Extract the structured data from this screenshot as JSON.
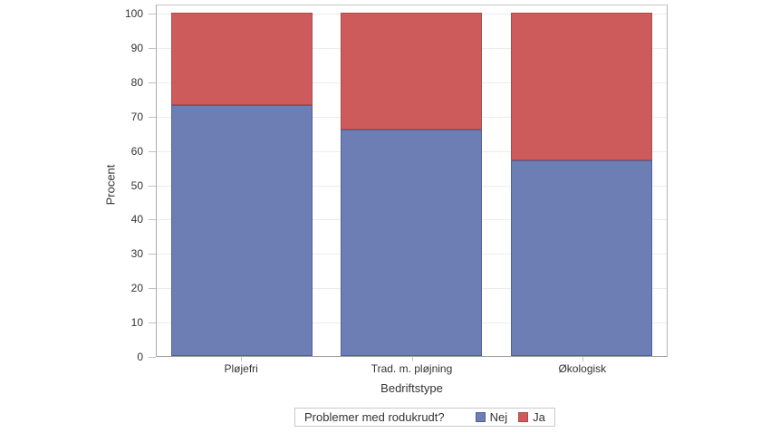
{
  "chart_data": {
    "type": "bar",
    "stacked": true,
    "unit": "percent",
    "categories": [
      "Pløjefri",
      "Trad. m. pløjning",
      "Økologisk"
    ],
    "series": [
      {
        "name": "Nej",
        "values": [
          73,
          66,
          57
        ],
        "color": "#6D7EB4",
        "border": "#50619B"
      },
      {
        "name": "Ja",
        "values": [
          27,
          34,
          43
        ],
        "color": "#CD5B5B",
        "border": "#AE4A4A"
      }
    ],
    "title": "",
    "xlabel": "Bedriftstype",
    "ylabel": "Procent",
    "ylim": [
      0,
      100
    ],
    "yticks": [
      0,
      10,
      20,
      30,
      40,
      50,
      60,
      70,
      80,
      90,
      100
    ],
    "grid": true,
    "legend": {
      "title": "Problemer med rodukrudt?",
      "position": "bottom",
      "entries": [
        "Nej",
        "Ja"
      ]
    }
  },
  "colors": {
    "background": "#FFFFFF",
    "axis_line": "#A9A9A9",
    "tick_mark": "#C2C2C2",
    "gridline": "#ECECEC",
    "frame": "#BDBDBD",
    "text": "#333333"
  }
}
